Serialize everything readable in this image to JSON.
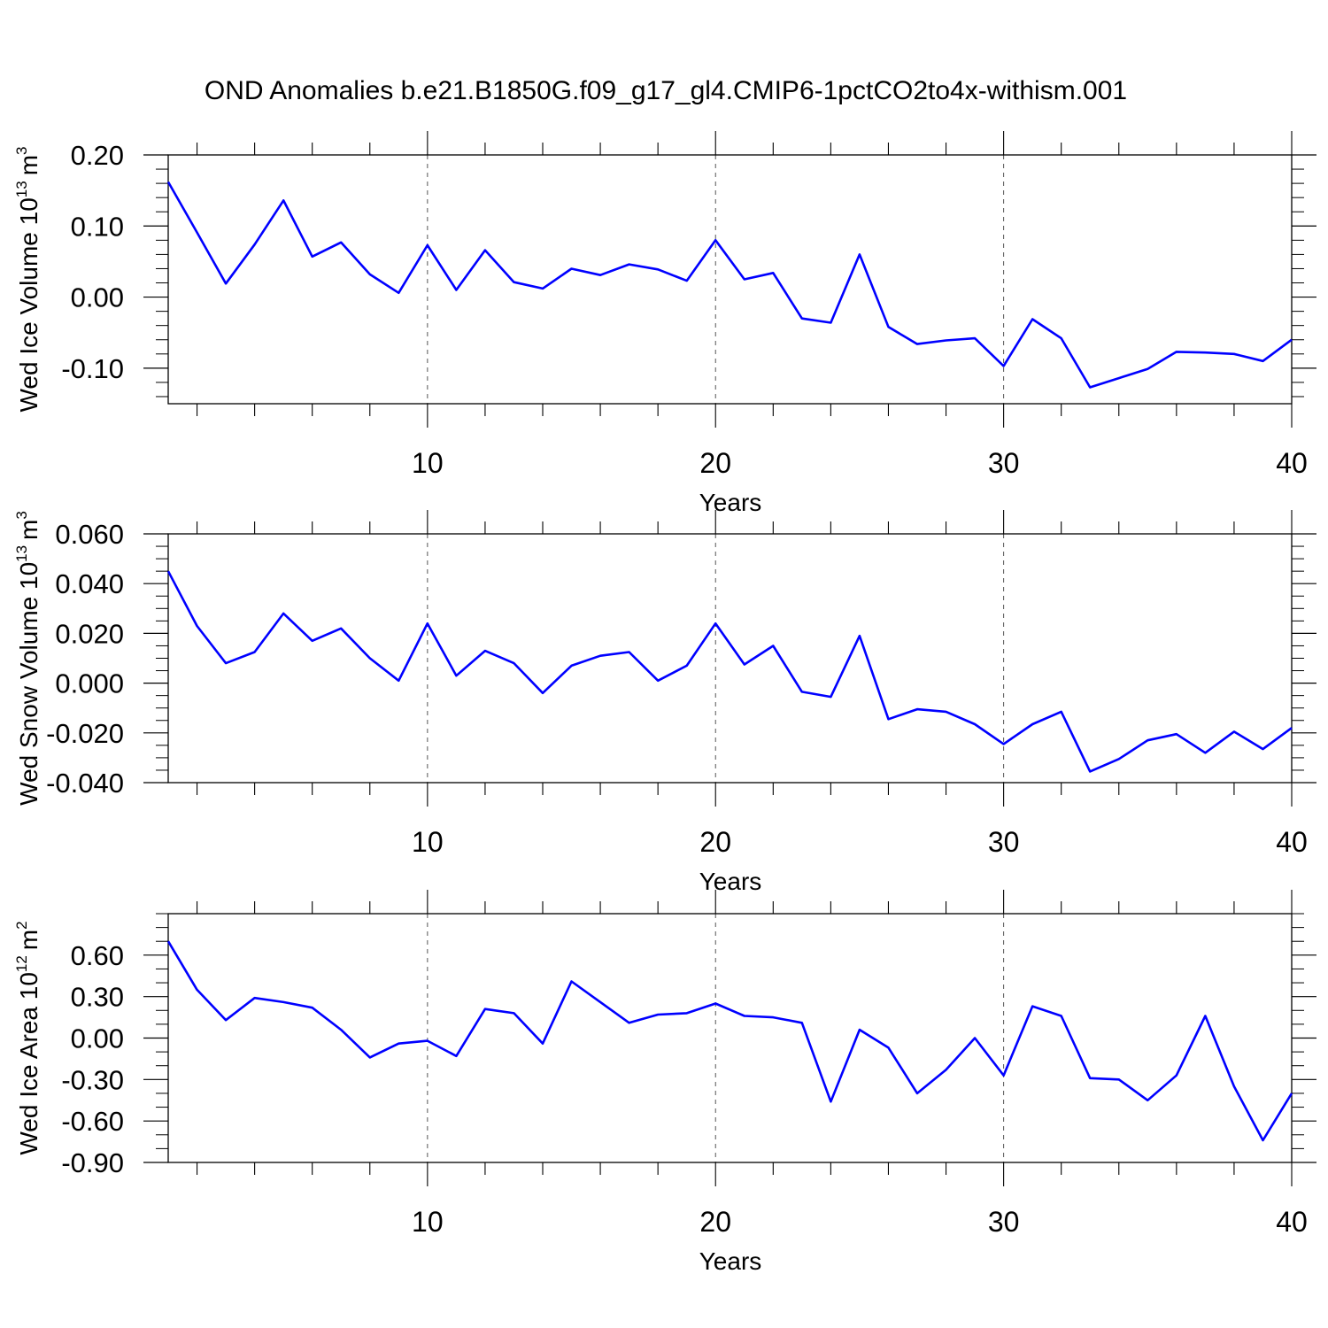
{
  "title": "OND Anomalies b.e21.B1850G.f09_g17_gl4.CMIP6-1pctCO2to4x-withism.001",
  "line_color": "#0000ff",
  "chart_data": [
    {
      "type": "line",
      "ylabel": "Wed Ice Volume 10",
      "ylabel_exp": "13",
      "ylabel_unit": "m",
      "ylabel_unit_exp": "3",
      "xlabel": "Years",
      "xlim": [
        1,
        40
      ],
      "ylim": [
        -0.15,
        0.2
      ],
      "yticks": [
        0.2,
        0.1,
        0.0,
        -0.1
      ],
      "ytick_labels": [
        "0.20",
        "0.10",
        "0.00",
        "-0.10"
      ],
      "yminor": [
        0.18,
        0.16,
        0.14,
        0.12,
        0.08,
        0.06,
        0.04,
        0.02,
        -0.02,
        -0.04,
        -0.06,
        -0.08,
        -0.12,
        -0.14
      ],
      "xticks": [
        10,
        20,
        30,
        40
      ],
      "xtick_labels": [
        "10",
        "20",
        "30",
        "40"
      ],
      "x": [
        1,
        2,
        3,
        4,
        5,
        6,
        7,
        8,
        9,
        10,
        11,
        12,
        13,
        14,
        15,
        16,
        17,
        18,
        19,
        20,
        21,
        22,
        23,
        24,
        25,
        26,
        27,
        28,
        29,
        30,
        31,
        32,
        33,
        34,
        35,
        36,
        37,
        38,
        39,
        40
      ],
      "values": [
        0.162,
        0.091,
        0.019,
        0.074,
        0.136,
        0.057,
        0.077,
        0.032,
        0.006,
        0.073,
        0.01,
        0.066,
        0.021,
        0.012,
        0.04,
        0.031,
        0.046,
        0.039,
        0.023,
        0.08,
        0.025,
        0.034,
        -0.03,
        -0.036,
        0.06,
        -0.042,
        -0.066,
        -0.061,
        -0.058,
        -0.097,
        -0.031,
        -0.058,
        -0.127,
        -0.114,
        -0.101,
        -0.077,
        -0.078,
        -0.08,
        -0.09,
        -0.06
      ]
    },
    {
      "type": "line",
      "ylabel": "Wed Snow Volume 10",
      "ylabel_exp": "13",
      "ylabel_unit": "m",
      "ylabel_unit_exp": "3",
      "xlabel": "Years",
      "xlim": [
        1,
        40
      ],
      "ylim": [
        -0.04,
        0.06
      ],
      "yticks": [
        0.06,
        0.04,
        0.02,
        0.0,
        -0.02,
        -0.04
      ],
      "ytick_labels": [
        "0.060",
        "0.040",
        "0.020",
        "0.000",
        "-0.020",
        "-0.040"
      ],
      "yminor": [
        0.055,
        0.05,
        0.045,
        0.035,
        0.03,
        0.025,
        0.015,
        0.01,
        0.005,
        -0.005,
        -0.01,
        -0.015,
        -0.025,
        -0.03,
        -0.035
      ],
      "xticks": [
        10,
        20,
        30,
        40
      ],
      "xtick_labels": [
        "10",
        "20",
        "30",
        "40"
      ],
      "x": [
        1,
        2,
        3,
        4,
        5,
        6,
        7,
        8,
        9,
        10,
        11,
        12,
        13,
        14,
        15,
        16,
        17,
        18,
        19,
        20,
        21,
        22,
        23,
        24,
        25,
        26,
        27,
        28,
        29,
        30,
        31,
        32,
        33,
        34,
        35,
        36,
        37,
        38,
        39,
        40
      ],
      "values": [
        0.045,
        0.023,
        0.008,
        0.0125,
        0.028,
        0.017,
        0.022,
        0.01,
        0.001,
        0.024,
        0.003,
        0.013,
        0.008,
        -0.004,
        0.007,
        0.011,
        0.0125,
        0.001,
        0.007,
        0.024,
        0.0075,
        0.015,
        -0.0035,
        -0.0055,
        0.019,
        -0.0145,
        -0.0105,
        -0.0115,
        -0.0165,
        -0.0245,
        -0.0165,
        -0.0115,
        -0.0355,
        -0.0305,
        -0.023,
        -0.0205,
        -0.028,
        -0.0195,
        -0.0265,
        -0.018
      ]
    },
    {
      "type": "line",
      "ylabel": "Wed Ice Area 10",
      "ylabel_exp": "12",
      "ylabel_unit": "m",
      "ylabel_unit_exp": "2",
      "xlabel": "Years",
      "xlim": [
        1,
        40
      ],
      "ylim": [
        -0.9,
        0.9
      ],
      "yticks": [
        0.6,
        0.3,
        0.0,
        -0.3,
        -0.6,
        -0.9
      ],
      "ytick_labels": [
        "0.60",
        "0.30",
        "0.00",
        "-0.30",
        "-0.60",
        "-0.90"
      ],
      "yminor": [
        0.9,
        0.8,
        0.7,
        0.5,
        0.4,
        0.2,
        0.1,
        -0.1,
        -0.2,
        -0.4,
        -0.5,
        -0.7,
        -0.8
      ],
      "xticks": [
        10,
        20,
        30,
        40
      ],
      "xtick_labels": [
        "10",
        "20",
        "30",
        "40"
      ],
      "x": [
        1,
        2,
        3,
        4,
        5,
        6,
        7,
        8,
        9,
        10,
        11,
        12,
        13,
        14,
        15,
        16,
        17,
        18,
        19,
        20,
        21,
        22,
        23,
        24,
        25,
        26,
        27,
        28,
        29,
        30,
        31,
        32,
        33,
        34,
        35,
        36,
        37,
        38,
        39,
        40
      ],
      "values": [
        0.7,
        0.35,
        0.13,
        0.29,
        0.26,
        0.22,
        0.06,
        -0.14,
        -0.04,
        -0.02,
        -0.13,
        0.21,
        0.18,
        -0.04,
        0.41,
        0.26,
        0.11,
        0.17,
        0.18,
        0.25,
        0.16,
        0.15,
        0.11,
        -0.46,
        0.06,
        -0.07,
        -0.4,
        -0.23,
        0.0,
        -0.27,
        0.23,
        0.16,
        -0.29,
        -0.3,
        -0.45,
        -0.27,
        0.16,
        -0.35,
        -0.74,
        -0.4
      ]
    }
  ]
}
